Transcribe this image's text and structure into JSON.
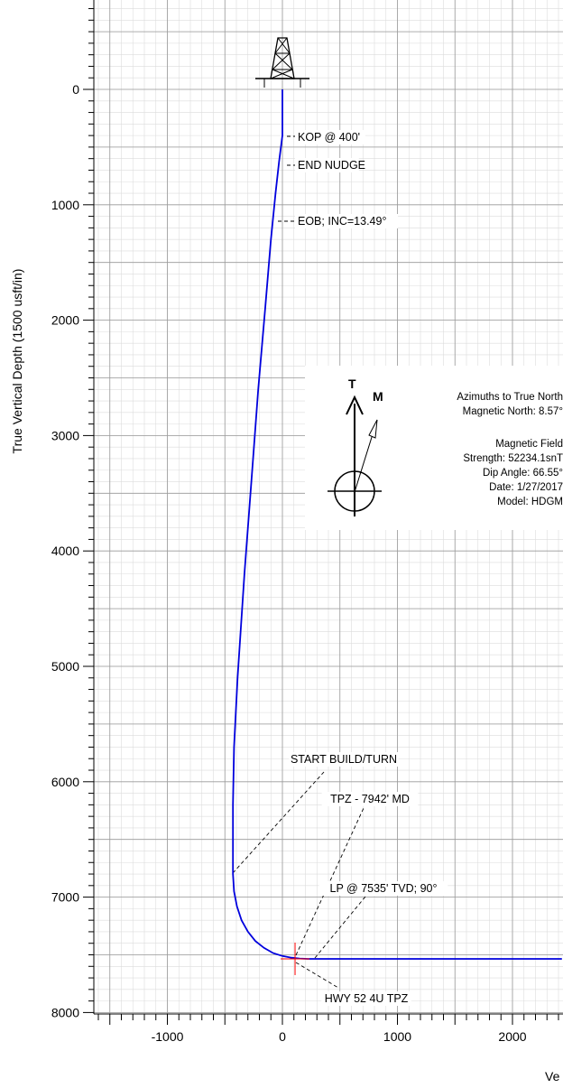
{
  "chart_data": {
    "type": "line",
    "ylabel": "True Vertical Depth (1500 usft/in)",
    "xlabel": "Ve",
    "xlim": [
      -1660,
      2430
    ],
    "ylim": [
      8000,
      -700
    ],
    "y_ticks": [
      0,
      1000,
      2000,
      3000,
      4000,
      5000,
      6000,
      7000,
      8000
    ],
    "x_ticks": [
      -1000,
      0,
      1000,
      2000
    ],
    "grid": true,
    "series": [
      {
        "color": "#0000dd",
        "x": [
          0,
          0,
          -28,
          -60,
          -100,
          -150,
          -210,
          -270,
          -330,
          -390,
          -420,
          -430,
          -430,
          -420,
          -395,
          -355,
          -300,
          -235,
          -160,
          -80,
          0,
          80,
          150,
          220,
          280,
          2430
        ],
        "y": [
          0,
          400,
          620,
          900,
          1300,
          1900,
          2600,
          3400,
          4200,
          5100,
          5700,
          6200,
          6800,
          6950,
          7080,
          7200,
          7300,
          7380,
          7440,
          7485,
          7510,
          7525,
          7532,
          7535,
          7535,
          7535
        ]
      }
    ],
    "annotations": [
      {
        "text": "KOP @ 400'",
        "x": 0,
        "y": 400
      },
      {
        "text": "END NUDGE",
        "x": -20,
        "y": 650
      },
      {
        "text": "EOB; INC=13.49°",
        "x": -50,
        "y": 1150
      },
      {
        "text": "START BUILD/TURN",
        "x": -430,
        "y": 6800
      },
      {
        "text": "TPZ - 7942' MD",
        "x": 120,
        "y": 7535
      },
      {
        "text": "LP @ 7535' TVD; 90°",
        "x": 280,
        "y": 7535
      },
      {
        "text": "HWY 52 4U TPZ",
        "x": 110,
        "y": 7535
      }
    ],
    "target": {
      "x": 110,
      "y": 7535,
      "color": "#ff0000"
    }
  },
  "info": {
    "north_lines": [
      "Azimuths to True North",
      "Magnetic North: 8.57°"
    ],
    "field_lines": [
      "Magnetic Field",
      "Strength: 52234.1snT",
      "Dip Angle: 66.55°",
      "Date: 1/27/2017",
      "Model: HDGM"
    ],
    "true_north_label": "T",
    "magnetic_north_label": "M"
  }
}
